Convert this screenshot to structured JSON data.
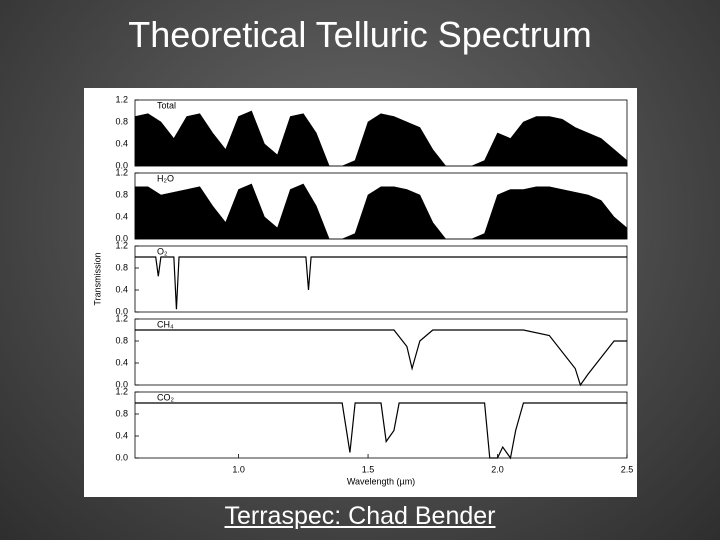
{
  "title": "Theoretical Telluric Spectrum",
  "caption": "Terraspec: Chad Bender",
  "chart_data": [
    {
      "type": "area",
      "label": "Total",
      "color": "#000000",
      "x": [
        0.6,
        0.65,
        0.7,
        0.75,
        0.8,
        0.85,
        0.9,
        0.95,
        1.0,
        1.05,
        1.1,
        1.15,
        1.2,
        1.25,
        1.3,
        1.35,
        1.4,
        1.45,
        1.5,
        1.55,
        1.6,
        1.65,
        1.7,
        1.75,
        1.8,
        1.85,
        1.9,
        1.95,
        2.0,
        2.05,
        2.1,
        2.15,
        2.2,
        2.25,
        2.3,
        2.35,
        2.4,
        2.45,
        2.5
      ],
      "values": [
        0.9,
        0.95,
        0.8,
        0.5,
        0.9,
        0.95,
        0.6,
        0.3,
        0.9,
        1.0,
        0.4,
        0.2,
        0.9,
        0.95,
        0.6,
        0.0,
        0.0,
        0.1,
        0.8,
        0.95,
        0.9,
        0.8,
        0.7,
        0.3,
        0.0,
        0.0,
        0.0,
        0.1,
        0.6,
        0.5,
        0.8,
        0.9,
        0.9,
        0.85,
        0.7,
        0.6,
        0.5,
        0.3,
        0.1
      ],
      "xlim": [
        0.6,
        2.5
      ],
      "ylim": [
        0,
        1.2
      ],
      "yticks": [
        {
          "value": 0,
          "label": "0.0"
        },
        0.4,
        0.8,
        1.2
      ]
    },
    {
      "type": "area",
      "label": "H₂O",
      "color": "#000000",
      "x": [
        0.6,
        0.65,
        0.7,
        0.75,
        0.8,
        0.85,
        0.9,
        0.95,
        1.0,
        1.05,
        1.1,
        1.15,
        1.2,
        1.25,
        1.3,
        1.35,
        1.4,
        1.45,
        1.5,
        1.55,
        1.6,
        1.65,
        1.7,
        1.75,
        1.8,
        1.85,
        1.9,
        1.95,
        2.0,
        2.05,
        2.1,
        2.15,
        2.2,
        2.25,
        2.3,
        2.35,
        2.4,
        2.45,
        2.5
      ],
      "values": [
        0.95,
        0.95,
        0.8,
        0.85,
        0.9,
        0.95,
        0.6,
        0.3,
        0.9,
        1.0,
        0.4,
        0.2,
        0.9,
        1.0,
        0.6,
        0.0,
        0.0,
        0.1,
        0.8,
        0.95,
        0.95,
        0.9,
        0.8,
        0.3,
        0.0,
        0.0,
        0.0,
        0.1,
        0.8,
        0.9,
        0.9,
        0.95,
        0.95,
        0.9,
        0.85,
        0.8,
        0.7,
        0.4,
        0.2
      ],
      "xlim": [
        0.6,
        2.5
      ],
      "ylim": [
        0,
        1.2
      ],
      "yticks": [
        {
          "value": 0,
          "label": "0.0"
        },
        0.4,
        0.8,
        1.2
      ]
    },
    {
      "type": "line",
      "label": "O₂",
      "color": "#000000",
      "ylabel": "Transmission",
      "x": [
        0.6,
        0.68,
        0.69,
        0.7,
        0.75,
        0.76,
        0.77,
        1.2,
        1.26,
        1.27,
        1.28,
        2.5
      ],
      "values": [
        1,
        1,
        0.65,
        1,
        1,
        0.05,
        1,
        1,
        1,
        0.4,
        1,
        1
      ],
      "xlim": [
        0.6,
        2.5
      ],
      "ylim": [
        0,
        1.2
      ],
      "yticks": [
        {
          "value": 0,
          "label": "0.0"
        },
        0.4,
        0.8,
        1.2
      ]
    },
    {
      "type": "line",
      "label": "CH₄",
      "color": "#000000",
      "x": [
        0.6,
        1.6,
        1.65,
        1.67,
        1.7,
        1.75,
        2.1,
        2.2,
        2.3,
        2.32,
        2.35,
        2.4,
        2.45,
        2.5
      ],
      "values": [
        1,
        1,
        0.7,
        0.3,
        0.8,
        1,
        1,
        0.9,
        0.3,
        0.0,
        0.2,
        0.5,
        0.8,
        0.8
      ],
      "xlim": [
        0.6,
        2.5
      ],
      "ylim": [
        0,
        1.2
      ],
      "yticks": [
        {
          "value": 0,
          "label": "0.0"
        },
        0.4,
        0.8,
        1.2
      ]
    },
    {
      "type": "line",
      "label": "CO₂",
      "color": "#000000",
      "xlabel": "Wavelength (µm)",
      "x": [
        0.6,
        1.4,
        1.43,
        1.45,
        1.55,
        1.57,
        1.6,
        1.62,
        1.95,
        1.97,
        2.0,
        2.02,
        2.05,
        2.07,
        2.1,
        2.5
      ],
      "values": [
        1,
        1,
        0.1,
        1,
        1,
        0.3,
        0.5,
        1,
        1,
        0.0,
        0.0,
        0.2,
        0.0,
        0.5,
        1,
        1
      ],
      "xlim": [
        0.6,
        2.5
      ],
      "ylim": [
        0,
        1.2
      ],
      "yticks": [
        {
          "value": 0,
          "label": "0.0"
        },
        0.4,
        0.8,
        1.2
      ],
      "xticks": [
        {
          "value": 1,
          "label": "1.0"
        },
        1.5,
        {
          "value": 2,
          "label": "2.0"
        },
        2.5
      ]
    }
  ]
}
